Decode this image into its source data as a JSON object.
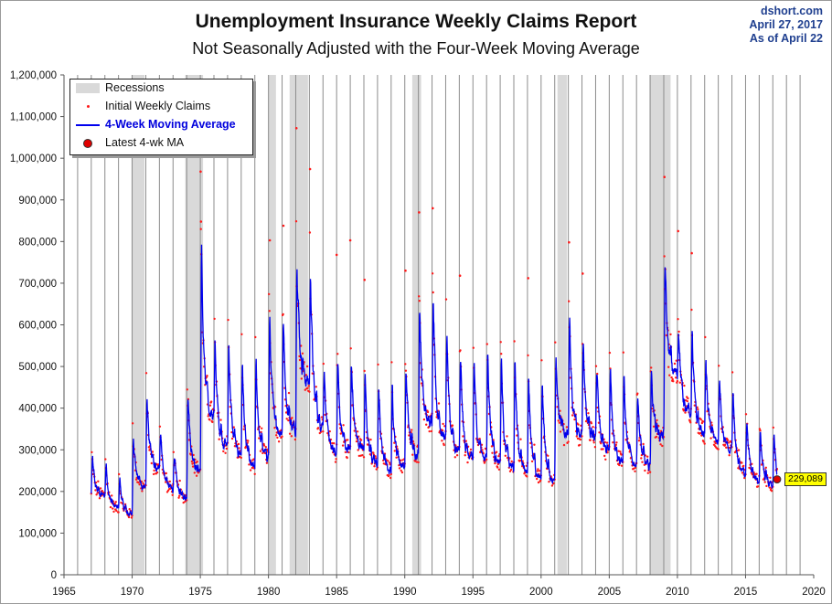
{
  "header": {
    "title": "Unemployment Insurance Weekly Claims Report",
    "subtitle": "Not Seasonally Adjusted with the Four-Week Moving Average"
  },
  "source": {
    "site": "dshort.com",
    "date": "April 27, 2017",
    "as_of": "As of April 22"
  },
  "legend": {
    "recessions": "Recessions",
    "initial_claims": "Initial Weekly Claims",
    "moving_average": "4-Week Moving Average",
    "latest": "Latest 4-wk MA"
  },
  "latest_label": "229,089",
  "colors": {
    "recession": "#d9d9d9",
    "claims": "#ff1a1a",
    "moving_average": "#0000ee",
    "grid": "#8c8c8c",
    "latest_box": "#ffff00"
  },
  "chart_data": {
    "type": "line",
    "title": "Unemployment Insurance Weekly Claims Report",
    "subtitle": "Not Seasonally Adjusted with the Four-Week Moving Average",
    "xlim": [
      1965,
      2020
    ],
    "ylim": [
      0,
      1200000
    ],
    "x_ticks": [
      1965,
      1970,
      1975,
      1980,
      1985,
      1990,
      1995,
      2000,
      2005,
      2010,
      2015,
      2020
    ],
    "y_ticks": [
      0,
      100000,
      200000,
      300000,
      400000,
      500000,
      600000,
      700000,
      800000,
      900000,
      1000000,
      1100000,
      1200000
    ],
    "y_tick_labels": [
      "0",
      "100,000",
      "200,000",
      "300,000",
      "400,000",
      "500,000",
      "600,000",
      "700,000",
      "800,000",
      "900,000",
      "1,000,000",
      "1,100,000",
      "1,200,000"
    ],
    "grid": "vertical yearly lines",
    "legend_position": "top-left",
    "recessions": [
      [
        1969.95,
        1970.9
      ],
      [
        1973.9,
        1975.2
      ],
      [
        1980.0,
        1980.55
      ],
      [
        1981.55,
        1982.9
      ],
      [
        1990.55,
        1991.2
      ],
      [
        2001.2,
        2001.9
      ],
      [
        2007.95,
        2009.5
      ]
    ],
    "seasonal_peaks": [
      [
        1967,
        290000
      ],
      [
        1968,
        285000
      ],
      [
        1969,
        245000
      ],
      [
        1970,
        360000
      ],
      [
        1971,
        460000
      ],
      [
        1972,
        380000
      ],
      [
        1973,
        305000
      ],
      [
        1974,
        480000
      ],
      [
        1975,
        830000
      ],
      [
        1976,
        595000
      ],
      [
        1977,
        605000
      ],
      [
        1978,
        545000
      ],
      [
        1979,
        540000
      ],
      [
        1980,
        655000
      ],
      [
        1981,
        650000
      ],
      [
        1982,
        825000
      ],
      [
        1983,
        785000
      ],
      [
        1984,
        530000
      ],
      [
        1985,
        545000
      ],
      [
        1986,
        540000
      ],
      [
        1987,
        515000
      ],
      [
        1988,
        480000
      ],
      [
        1989,
        480000
      ],
      [
        1990,
        530000
      ],
      [
        1991,
        715000
      ],
      [
        1992,
        705000
      ],
      [
        1993,
        635000
      ],
      [
        1994,
        565000
      ],
      [
        1995,
        545000
      ],
      [
        1996,
        585000
      ],
      [
        1997,
        560000
      ],
      [
        1998,
        545000
      ],
      [
        1999,
        530000
      ],
      [
        2000,
        515000
      ],
      [
        2001,
        580000
      ],
      [
        2002,
        660000
      ],
      [
        2003,
        605000
      ],
      [
        2004,
        545000
      ],
      [
        2005,
        520000
      ],
      [
        2006,
        500000
      ],
      [
        2007,
        470000
      ],
      [
        2008,
        515000
      ],
      [
        2009,
        795000
      ],
      [
        2010,
        635000
      ],
      [
        2011,
        605000
      ],
      [
        2012,
        545000
      ],
      [
        2013,
        495000
      ],
      [
        2014,
        455000
      ],
      [
        2015,
        400000
      ],
      [
        2016,
        355000
      ],
      [
        2017,
        360000
      ]
    ],
    "seasonal_troughs": [
      [
        1967,
        190000
      ],
      [
        1968,
        160000
      ],
      [
        1969,
        145000
      ],
      [
        1970,
        210000
      ],
      [
        1971,
        250000
      ],
      [
        1972,
        205000
      ],
      [
        1973,
        185000
      ],
      [
        1974,
        250000
      ],
      [
        1975,
        380000
      ],
      [
        1976,
        310000
      ],
      [
        1977,
        290000
      ],
      [
        1978,
        255000
      ],
      [
        1979,
        285000
      ],
      [
        1980,
        340000
      ],
      [
        1981,
        350000
      ],
      [
        1982,
        460000
      ],
      [
        1983,
        360000
      ],
      [
        1984,
        290000
      ],
      [
        1985,
        300000
      ],
      [
        1986,
        300000
      ],
      [
        1987,
        265000
      ],
      [
        1988,
        250000
      ],
      [
        1989,
        260000
      ],
      [
        1990,
        290000
      ],
      [
        1991,
        360000
      ],
      [
        1992,
        330000
      ],
      [
        1993,
        290000
      ],
      [
        1994,
        275000
      ],
      [
        1995,
        280000
      ],
      [
        1996,
        270000
      ],
      [
        1997,
        255000
      ],
      [
        1998,
        250000
      ],
      [
        1999,
        230000
      ],
      [
        2000,
        225000
      ],
      [
        2001,
        330000
      ],
      [
        2002,
        330000
      ],
      [
        2003,
        330000
      ],
      [
        2004,
        295000
      ],
      [
        2005,
        275000
      ],
      [
        2006,
        265000
      ],
      [
        2007,
        260000
      ],
      [
        2008,
        330000
      ],
      [
        2009,
        480000
      ],
      [
        2010,
        390000
      ],
      [
        2011,
        340000
      ],
      [
        2012,
        320000
      ],
      [
        2013,
        295000
      ],
      [
        2014,
        245000
      ],
      [
        2015,
        225000
      ],
      [
        2016,
        215000
      ],
      [
        2017,
        200000
      ]
    ],
    "series": [
      {
        "name": "Initial Weekly Claims",
        "style": "points",
        "color": "#ff1a1a"
      },
      {
        "name": "4-Week Moving Average",
        "style": "line",
        "color": "#0000ee"
      }
    ],
    "notable_points": [
      {
        "x": 1975.02,
        "y": 968000
      },
      {
        "x": 1975.05,
        "y": 848000
      },
      {
        "x": 1980.1,
        "y": 803000
      },
      {
        "x": 1981.1,
        "y": 838000
      },
      {
        "x": 1982.05,
        "y": 1072000
      },
      {
        "x": 1983.05,
        "y": 974000
      },
      {
        "x": 1985.0,
        "y": 768000
      },
      {
        "x": 1986.0,
        "y": 803000
      },
      {
        "x": 1987.05,
        "y": 708000
      },
      {
        "x": 1990.05,
        "y": 730000
      },
      {
        "x": 1991.05,
        "y": 870000
      },
      {
        "x": 1992.05,
        "y": 880000
      },
      {
        "x": 1994.05,
        "y": 718000
      },
      {
        "x": 1999.05,
        "y": 712000
      },
      {
        "x": 2002.05,
        "y": 798000
      },
      {
        "x": 2003.05,
        "y": 723000
      },
      {
        "x": 2009.05,
        "y": 955000
      },
      {
        "x": 2010.05,
        "y": 825000
      },
      {
        "x": 2011.05,
        "y": 772000
      }
    ],
    "latest": {
      "x": 2017.31,
      "y": 229089,
      "label": "229,089"
    }
  }
}
